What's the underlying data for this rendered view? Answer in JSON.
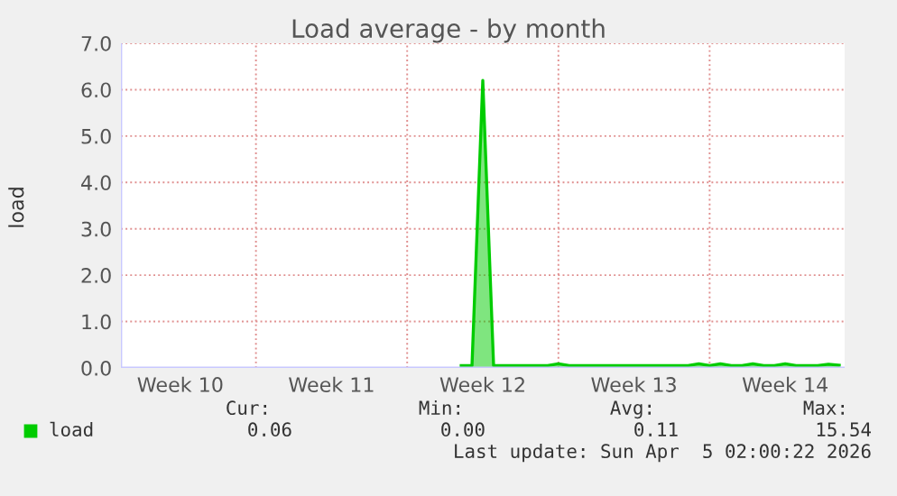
{
  "chart_data": {
    "type": "area",
    "title": "Load average - by month",
    "ylabel": "load",
    "categories": [
      null,
      null,
      null,
      null,
      null,
      "Week 10",
      null,
      null,
      null,
      null,
      null,
      null,
      null,
      null,
      null,
      null,
      null,
      null,
      null,
      "Week 11",
      null,
      null,
      null,
      null,
      null,
      null,
      null,
      null,
      null,
      null,
      null,
      null,
      null,
      "Week 12",
      null,
      null,
      null,
      null,
      null,
      null,
      null,
      null,
      null,
      null,
      null,
      null,
      null,
      "Week 13",
      null,
      null,
      null,
      null,
      null,
      null,
      null,
      null,
      null,
      null,
      null,
      null,
      null,
      "Week 14",
      null,
      null,
      null,
      null,
      null
    ],
    "series": [
      {
        "name": "load",
        "color": "#00cc00",
        "values": [
          null,
          null,
          null,
          null,
          null,
          null,
          null,
          null,
          null,
          null,
          null,
          null,
          null,
          null,
          null,
          null,
          null,
          null,
          null,
          null,
          null,
          null,
          null,
          null,
          null,
          null,
          null,
          null,
          null,
          null,
          null,
          0.05,
          0.05,
          6.2,
          0.05,
          0.05,
          0.05,
          0.05,
          0.05,
          0.05,
          0.09,
          0.05,
          0.05,
          0.05,
          0.05,
          0.05,
          0.05,
          0.05,
          0.05,
          0.05,
          0.05,
          0.05,
          0.05,
          0.09,
          0.05,
          0.09,
          0.05,
          0.05,
          0.09,
          0.05,
          0.05,
          0.09,
          0.05,
          0.05,
          0.05,
          0.08,
          0.06
        ]
      }
    ],
    "ylim": [
      0,
      7
    ],
    "yticks": [
      {
        "value": 0,
        "label": "0.0"
      },
      {
        "value": 1,
        "label": "1.0"
      },
      {
        "value": 2,
        "label": "2.0"
      },
      {
        "value": 3,
        "label": "3.0"
      },
      {
        "value": 4,
        "label": "4.0"
      },
      {
        "value": 5,
        "label": "5.0"
      },
      {
        "value": 6,
        "label": "6.0"
      },
      {
        "value": 7,
        "label": "7.0"
      }
    ],
    "grid": true,
    "legend": "bottom left",
    "annotations": [
      "Cur:",
      "Min:",
      "Avg:",
      "Max:",
      "0.06",
      "0.00",
      "0.11",
      "15.54",
      "Last update: Sun Apr  5 02:00:22 2026"
    ]
  }
}
